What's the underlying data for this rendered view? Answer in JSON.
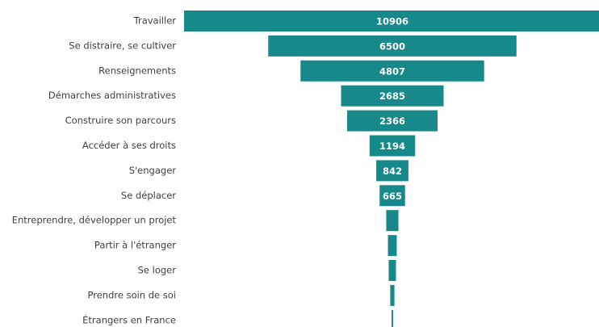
{
  "chart_data": {
    "type": "funnel",
    "categories": [
      "Travailler",
      "Se distraire, se cultiver",
      "Renseignements",
      "Démarches administratives",
      "Construire son parcours",
      "Accéder à ses droits",
      "S'engager",
      "Se déplacer",
      "Entreprendre, développer un projet",
      "Partir à l'étranger",
      "Se loger",
      "Prendre soin de soi",
      "Étrangers en France"
    ],
    "values": [
      10906,
      6500,
      4807,
      2685,
      2366,
      1194,
      842,
      665,
      320,
      230,
      190,
      110,
      40
    ],
    "value_labels": [
      "10906",
      "6500",
      "4807",
      "2685",
      "2366",
      "1194",
      "842",
      "665",
      null,
      null,
      null,
      null,
      null
    ],
    "color": "#17898b"
  }
}
